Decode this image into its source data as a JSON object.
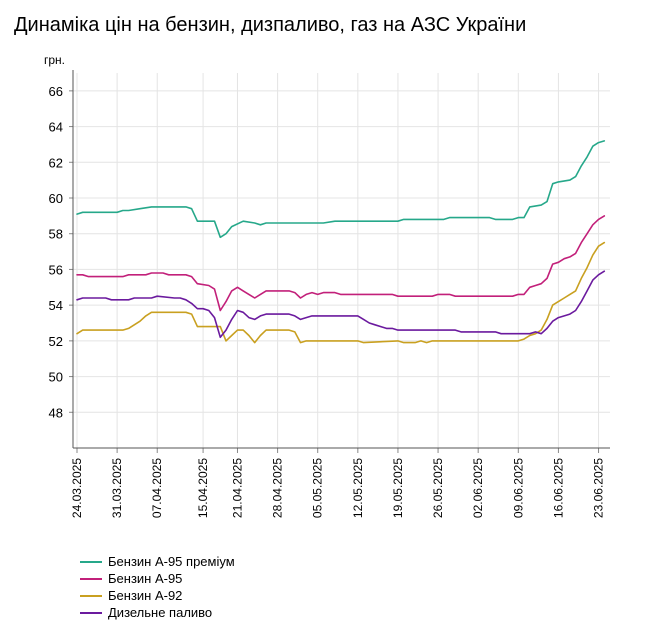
{
  "title": "Динаміка цін на бензин, дизпаливо, газ на АЗС України",
  "chart_data": {
    "type": "line",
    "title": "Динаміка цін на бензин, дизпаливо, газ на АЗС України",
    "ylabel": "грн.",
    "xlabel": "",
    "ylim": [
      46,
      67
    ],
    "yticks": [
      48,
      50,
      52,
      54,
      56,
      58,
      60,
      62,
      64,
      66
    ],
    "xlim": [
      "2025-03-24",
      "2025-06-25"
    ],
    "xticks": [
      "24.03.2025",
      "31.03.2025",
      "07.04.2025",
      "15.04.2025",
      "21.04.2025",
      "28.04.2025",
      "05.05.2025",
      "12.05.2025",
      "19.05.2025",
      "26.05.2025",
      "02.06.2025",
      "09.06.2025",
      "16.06.2025",
      "23.06.2025"
    ],
    "grid": true,
    "legend_position": "bottom",
    "series": [
      {
        "name": "Бензин А-95 преміум",
        "color": "#26a88a",
        "points": [
          [
            "24.03.2025",
            59.1
          ],
          [
            "25.03.2025",
            59.2
          ],
          [
            "31.03.2025",
            59.2
          ],
          [
            "01.04.2025",
            59.3
          ],
          [
            "02.04.2025",
            59.3
          ],
          [
            "04.04.2025",
            59.4
          ],
          [
            "06.04.2025",
            59.5
          ],
          [
            "12.04.2025",
            59.5
          ],
          [
            "13.04.2025",
            59.4
          ],
          [
            "14.04.2025",
            58.7
          ],
          [
            "17.04.2025",
            58.7
          ],
          [
            "18.04.2025",
            57.8
          ],
          [
            "19.04.2025",
            58.0
          ],
          [
            "20.04.2025",
            58.4
          ],
          [
            "22.04.2025",
            58.7
          ],
          [
            "24.04.2025",
            58.6
          ],
          [
            "25.04.2025",
            58.5
          ],
          [
            "26.04.2025",
            58.6
          ],
          [
            "04.05.2025",
            58.6
          ],
          [
            "05.05.2025",
            58.6
          ],
          [
            "06.05.2025",
            58.6
          ],
          [
            "08.05.2025",
            58.7
          ],
          [
            "10.05.2025",
            58.7
          ],
          [
            "11.05.2025",
            58.7
          ],
          [
            "12.05.2025",
            58.7
          ],
          [
            "19.05.2025",
            58.7
          ],
          [
            "20.05.2025",
            58.8
          ],
          [
            "27.05.2025",
            58.8
          ],
          [
            "28.05.2025",
            58.9
          ],
          [
            "04.06.2025",
            58.9
          ],
          [
            "05.06.2025",
            58.8
          ],
          [
            "08.06.2025",
            58.8
          ],
          [
            "09.06.2025",
            58.9
          ],
          [
            "10.06.2025",
            58.9
          ],
          [
            "11.06.2025",
            59.5
          ],
          [
            "13.06.2025",
            59.6
          ],
          [
            "14.06.2025",
            59.8
          ],
          [
            "15.06.2025",
            60.8
          ],
          [
            "16.06.2025",
            60.9
          ],
          [
            "18.06.2025",
            61.0
          ],
          [
            "19.06.2025",
            61.2
          ],
          [
            "20.06.2025",
            61.8
          ],
          [
            "21.06.2025",
            62.3
          ],
          [
            "22.06.2025",
            62.9
          ],
          [
            "23.06.2025",
            63.1
          ],
          [
            "24.06.2025",
            63.2
          ]
        ]
      },
      {
        "name": "Бензин А-95",
        "color": "#c2207a",
        "points": [
          [
            "24.03.2025",
            55.7
          ],
          [
            "25.03.2025",
            55.7
          ],
          [
            "26.03.2025",
            55.6
          ],
          [
            "01.04.2025",
            55.6
          ],
          [
            "02.04.2025",
            55.7
          ],
          [
            "05.04.2025",
            55.7
          ],
          [
            "06.04.2025",
            55.8
          ],
          [
            "08.04.2025",
            55.8
          ],
          [
            "09.04.2025",
            55.7
          ],
          [
            "12.04.2025",
            55.7
          ],
          [
            "13.04.2025",
            55.6
          ],
          [
            "14.04.2025",
            55.2
          ],
          [
            "16.04.2025",
            55.1
          ],
          [
            "17.04.2025",
            54.9
          ],
          [
            "18.04.2025",
            53.7
          ],
          [
            "19.04.2025",
            54.2
          ],
          [
            "20.04.2025",
            54.8
          ],
          [
            "21.04.2025",
            55.0
          ],
          [
            "22.04.2025",
            54.8
          ],
          [
            "23.04.2025",
            54.6
          ],
          [
            "24.04.2025",
            54.4
          ],
          [
            "25.04.2025",
            54.6
          ],
          [
            "26.04.2025",
            54.8
          ],
          [
            "30.04.2025",
            54.8
          ],
          [
            "01.05.2025",
            54.7
          ],
          [
            "02.05.2025",
            54.4
          ],
          [
            "03.05.2025",
            54.6
          ],
          [
            "04.05.2025",
            54.7
          ],
          [
            "05.05.2025",
            54.6
          ],
          [
            "06.05.2025",
            54.7
          ],
          [
            "08.05.2025",
            54.7
          ],
          [
            "09.05.2025",
            54.6
          ],
          [
            "18.05.2025",
            54.6
          ],
          [
            "19.05.2025",
            54.5
          ],
          [
            "25.05.2025",
            54.5
          ],
          [
            "26.05.2025",
            54.6
          ],
          [
            "28.05.2025",
            54.6
          ],
          [
            "29.05.2025",
            54.5
          ],
          [
            "08.06.2025",
            54.5
          ],
          [
            "09.06.2025",
            54.6
          ],
          [
            "10.06.2025",
            54.6
          ],
          [
            "11.06.2025",
            55.0
          ],
          [
            "12.06.2025",
            55.1
          ],
          [
            "13.06.2025",
            55.2
          ],
          [
            "14.06.2025",
            55.5
          ],
          [
            "15.06.2025",
            56.3
          ],
          [
            "16.06.2025",
            56.4
          ],
          [
            "17.06.2025",
            56.6
          ],
          [
            "18.06.2025",
            56.7
          ],
          [
            "19.06.2025",
            56.9
          ],
          [
            "20.06.2025",
            57.5
          ],
          [
            "21.06.2025",
            58.0
          ],
          [
            "22.06.2025",
            58.5
          ],
          [
            "23.06.2025",
            58.8
          ],
          [
            "24.06.2025",
            59.0
          ]
        ]
      },
      {
        "name": "Бензин А-92",
        "color": "#c9a020",
        "points": [
          [
            "24.03.2025",
            52.4
          ],
          [
            "25.03.2025",
            52.6
          ],
          [
            "26.03.2025",
            52.6
          ],
          [
            "27.03.2025",
            52.6
          ],
          [
            "01.04.2025",
            52.6
          ],
          [
            "02.04.2025",
            52.7
          ],
          [
            "03.04.2025",
            52.9
          ],
          [
            "04.04.2025",
            53.1
          ],
          [
            "05.04.2025",
            53.4
          ],
          [
            "06.04.2025",
            53.6
          ],
          [
            "12.04.2025",
            53.6
          ],
          [
            "13.04.2025",
            53.5
          ],
          [
            "14.04.2025",
            52.8
          ],
          [
            "18.04.2025",
            52.8
          ],
          [
            "19.04.2025",
            52.0
          ],
          [
            "20.04.2025",
            52.3
          ],
          [
            "21.04.2025",
            52.6
          ],
          [
            "22.04.2025",
            52.6
          ],
          [
            "23.04.2025",
            52.3
          ],
          [
            "24.04.2025",
            51.9
          ],
          [
            "25.04.2025",
            52.3
          ],
          [
            "26.04.2025",
            52.6
          ],
          [
            "30.04.2025",
            52.6
          ],
          [
            "01.05.2025",
            52.5
          ],
          [
            "02.05.2025",
            51.9
          ],
          [
            "03.05.2025",
            52.0
          ],
          [
            "12.05.2025",
            52.0
          ],
          [
            "13.05.2025",
            51.9
          ],
          [
            "19.05.2025",
            52.0
          ],
          [
            "20.05.2025",
            51.9
          ],
          [
            "22.05.2025",
            51.9
          ],
          [
            "23.05.2025",
            52.0
          ],
          [
            "24.05.2025",
            51.9
          ],
          [
            "25.05.2025",
            52.0
          ],
          [
            "08.06.2025",
            52.0
          ],
          [
            "09.06.2025",
            52.0
          ],
          [
            "10.06.2025",
            52.1
          ],
          [
            "11.06.2025",
            52.3
          ],
          [
            "12.06.2025",
            52.4
          ],
          [
            "13.06.2025",
            52.6
          ],
          [
            "14.06.2025",
            53.2
          ],
          [
            "15.06.2025",
            54.0
          ],
          [
            "16.06.2025",
            54.2
          ],
          [
            "17.06.2025",
            54.4
          ],
          [
            "18.06.2025",
            54.6
          ],
          [
            "19.06.2025",
            54.8
          ],
          [
            "20.06.2025",
            55.5
          ],
          [
            "21.06.2025",
            56.1
          ],
          [
            "22.06.2025",
            56.8
          ],
          [
            "23.06.2025",
            57.3
          ],
          [
            "24.06.2025",
            57.5
          ]
        ]
      },
      {
        "name": "Дизельне паливо",
        "color": "#6b1a9e",
        "points": [
          [
            "24.03.2025",
            54.3
          ],
          [
            "25.03.2025",
            54.4
          ],
          [
            "26.03.2025",
            54.4
          ],
          [
            "27.03.2025",
            54.4
          ],
          [
            "28.03.2025",
            54.4
          ],
          [
            "29.03.2025",
            54.4
          ],
          [
            "30.03.2025",
            54.3
          ],
          [
            "02.04.2025",
            54.3
          ],
          [
            "03.04.2025",
            54.4
          ],
          [
            "06.04.2025",
            54.4
          ],
          [
            "07.04.2025",
            54.5
          ],
          [
            "10.04.2025",
            54.4
          ],
          [
            "11.04.2025",
            54.4
          ],
          [
            "12.04.2025",
            54.3
          ],
          [
            "13.04.2025",
            54.1
          ],
          [
            "14.04.2025",
            53.8
          ],
          [
            "15.04.2025",
            53.8
          ],
          [
            "16.04.2025",
            53.7
          ],
          [
            "17.04.2025",
            53.3
          ],
          [
            "18.04.2025",
            52.2
          ],
          [
            "19.04.2025",
            52.6
          ],
          [
            "20.04.2025",
            53.2
          ],
          [
            "21.04.2025",
            53.7
          ],
          [
            "22.04.2025",
            53.6
          ],
          [
            "23.04.2025",
            53.3
          ],
          [
            "24.04.2025",
            53.2
          ],
          [
            "25.04.2025",
            53.4
          ],
          [
            "26.04.2025",
            53.5
          ],
          [
            "30.04.2025",
            53.5
          ],
          [
            "01.05.2025",
            53.4
          ],
          [
            "02.05.2025",
            53.2
          ],
          [
            "03.05.2025",
            53.3
          ],
          [
            "04.05.2025",
            53.4
          ],
          [
            "12.05.2025",
            53.4
          ],
          [
            "13.05.2025",
            53.2
          ],
          [
            "14.05.2025",
            53.0
          ],
          [
            "15.05.2025",
            52.9
          ],
          [
            "16.05.2025",
            52.8
          ],
          [
            "17.05.2025",
            52.7
          ],
          [
            "18.05.2025",
            52.7
          ],
          [
            "19.05.2025",
            52.6
          ],
          [
            "22.05.2025",
            52.6
          ],
          [
            "23.05.2025",
            52.6
          ],
          [
            "29.05.2025",
            52.6
          ],
          [
            "30.05.2025",
            52.5
          ],
          [
            "05.06.2025",
            52.5
          ],
          [
            "06.06.2025",
            52.4
          ],
          [
            "11.06.2025",
            52.4
          ],
          [
            "12.06.2025",
            52.5
          ],
          [
            "13.06.2025",
            52.4
          ],
          [
            "14.06.2025",
            52.7
          ],
          [
            "15.06.2025",
            53.1
          ],
          [
            "16.06.2025",
            53.3
          ],
          [
            "17.06.2025",
            53.4
          ],
          [
            "18.06.2025",
            53.5
          ],
          [
            "19.06.2025",
            53.7
          ],
          [
            "20.06.2025",
            54.2
          ],
          [
            "21.06.2025",
            54.8
          ],
          [
            "22.06.2025",
            55.4
          ],
          [
            "23.06.2025",
            55.7
          ],
          [
            "24.06.2025",
            55.9
          ]
        ]
      }
    ]
  }
}
